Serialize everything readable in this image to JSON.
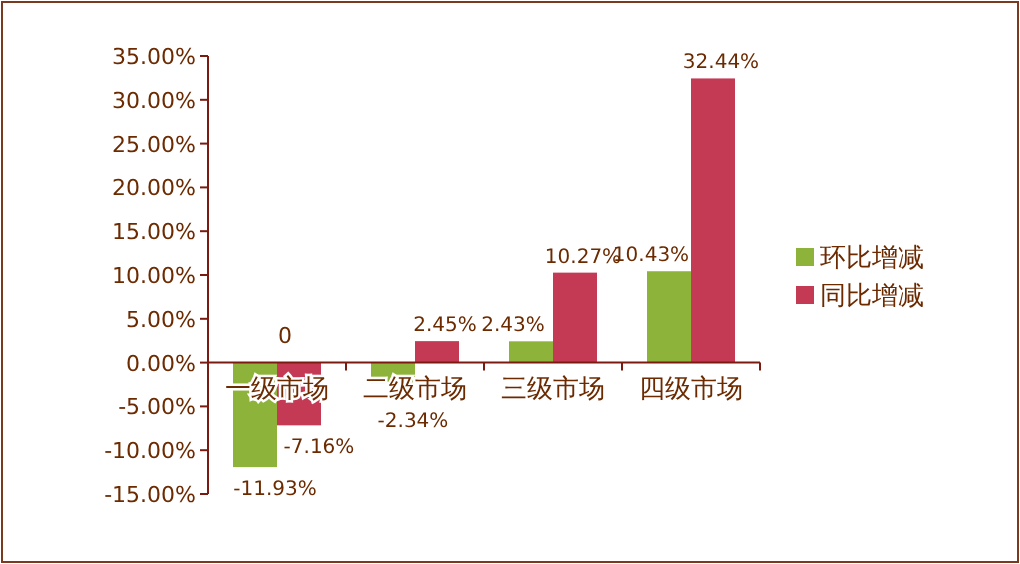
{
  "chart_data": {
    "type": "bar",
    "categories": [
      "一级市场",
      "二级市场",
      "三级市场",
      "四级市场"
    ],
    "series": [
      {
        "name": "环比增减",
        "color": "#8db33a",
        "values": [
          -11.93,
          -2.34,
          2.43,
          10.43
        ],
        "value_labels": [
          "-11.93%",
          "-2.34%",
          "2.43%",
          "10.43%"
        ]
      },
      {
        "name": "同比增减",
        "color": "#c43a55",
        "values": [
          -7.16,
          2.45,
          10.27,
          32.44
        ],
        "value_labels": [
          "-7.16%",
          "2.45%",
          "10.27%",
          "32.44%"
        ]
      }
    ],
    "annotations": [
      {
        "text": "0",
        "x": "一级市场",
        "y": 0
      }
    ],
    "ylim": [
      -15,
      35
    ],
    "yticks": [
      {
        "value": -15,
        "label": "-15.00%"
      },
      {
        "value": -10,
        "label": "-10.00%"
      },
      {
        "value": -5,
        "label": "-5.00%"
      },
      {
        "value": 0,
        "label": "0.00%"
      },
      {
        "value": 5,
        "label": "5.00%"
      },
      {
        "value": 10,
        "label": "10.00%"
      },
      {
        "value": 15,
        "label": "15.00%"
      },
      {
        "value": 20,
        "label": "20.00%"
      },
      {
        "value": 25,
        "label": "25.00%"
      },
      {
        "value": 30,
        "label": "30.00%"
      },
      {
        "value": 35,
        "label": "35.00%"
      }
    ],
    "grid": false,
    "legend": "right"
  }
}
